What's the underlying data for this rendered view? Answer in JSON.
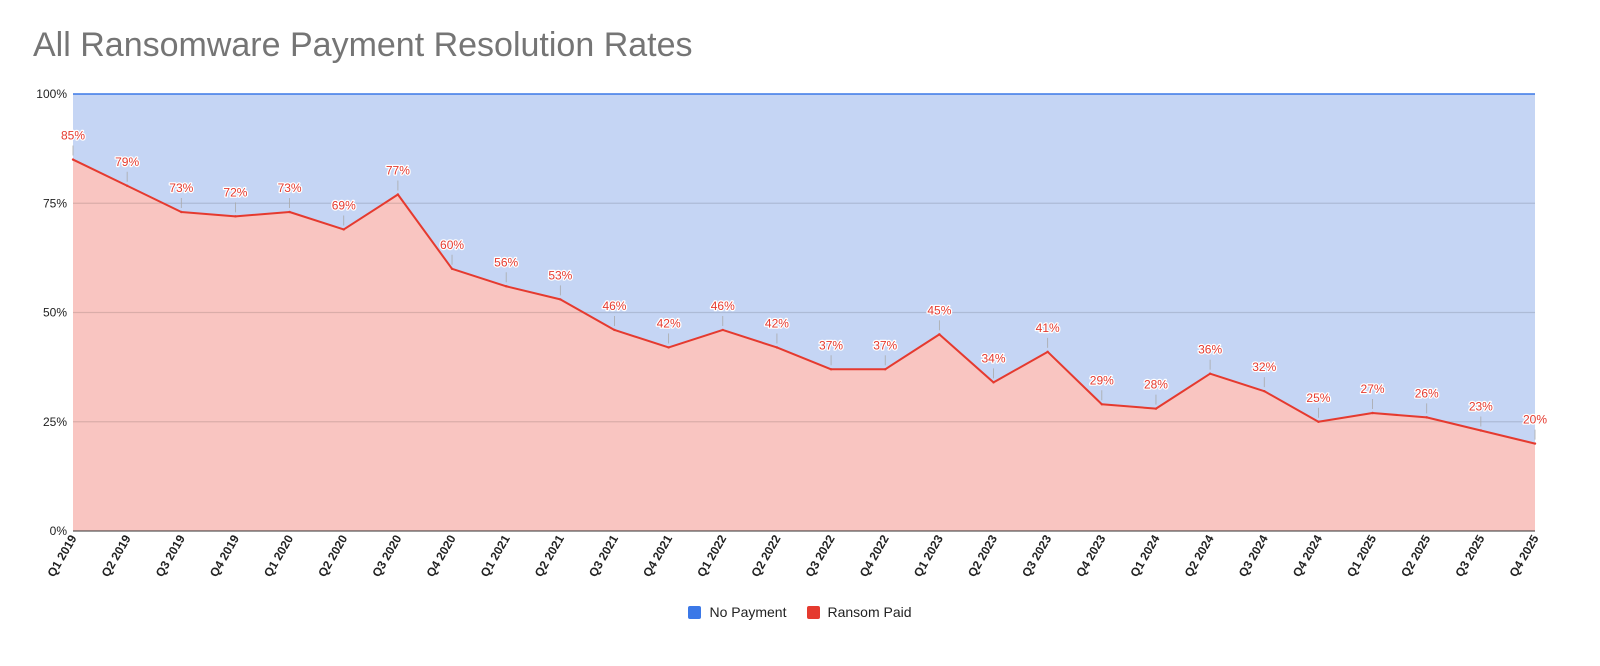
{
  "chart_data": {
    "type": "area",
    "stacked": true,
    "title": "All Ransomware Payment Resolution Rates",
    "xlabel": "",
    "ylabel": "",
    "ylim": [
      0,
      100
    ],
    "y_ticks": [
      "0%",
      "25%",
      "50%",
      "75%",
      "100%"
    ],
    "grid": true,
    "legend_position": "bottom",
    "categories": [
      "Q1 2019",
      "Q2 2019",
      "Q3 2019",
      "Q4 2019",
      "Q1 2020",
      "Q2 2020",
      "Q3 2020",
      "Q4 2020",
      "Q1 2021",
      "Q2 2021",
      "Q3 2021",
      "Q4 2021",
      "Q1 2022",
      "Q2 2022",
      "Q3 2022",
      "Q4 2022",
      "Q1 2023",
      "Q2 2023",
      "Q3 2023",
      "Q4 2023",
      "Q1 2024",
      "Q2 2024",
      "Q3 2024",
      "Q4 2024",
      "Q1 2025",
      "Q2 2025",
      "Q3 2025",
      "Q4 2025"
    ],
    "series": [
      {
        "name": "No Payment",
        "color": "#3b78e7",
        "fill": "#c5d5f4",
        "values": [
          15,
          21,
          27,
          28,
          27,
          31,
          23,
          40,
          44,
          47,
          54,
          58,
          54,
          58,
          63,
          63,
          55,
          66,
          59,
          71,
          72,
          64,
          68,
          75,
          73,
          74,
          77,
          80
        ]
      },
      {
        "name": "Ransom Paid",
        "color": "#e53a2f",
        "fill": "#f9c5c1",
        "values": [
          85,
          79,
          73,
          72,
          73,
          69,
          77,
          60,
          56,
          53,
          46,
          42,
          46,
          42,
          37,
          37,
          45,
          34,
          41,
          29,
          28,
          36,
          32,
          25,
          27,
          26,
          23,
          20
        ],
        "data_labels": [
          "85%",
          "79%",
          "73%",
          "72%",
          "73%",
          "69%",
          "77%",
          "60%",
          "56%",
          "53%",
          "46%",
          "42%",
          "46%",
          "42%",
          "37%",
          "37%",
          "45%",
          "34%",
          "41%",
          "29%",
          "28%",
          "36%",
          "32%",
          "25%",
          "27%",
          "26%",
          "23%",
          "20%"
        ]
      }
    ]
  }
}
